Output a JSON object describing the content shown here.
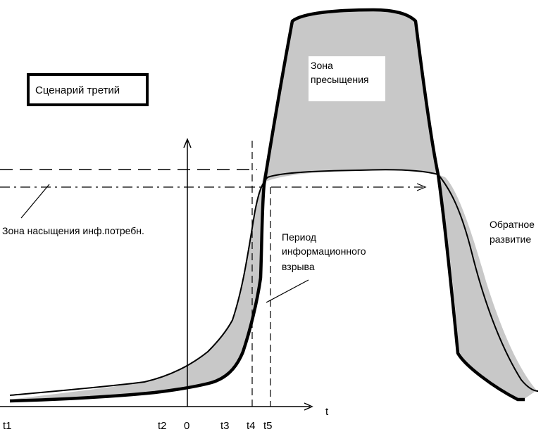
{
  "scenario_label": "Сценарий третий",
  "zones": {
    "supersaturation": [
      "Зона",
      "пресыщения"
    ],
    "saturation": "Зона насыщения  инф.потребн.",
    "explosion": [
      "Период",
      "информационного",
      "взрыва"
    ],
    "reverse": [
      "Обратное",
      "развитие"
    ]
  },
  "axis": {
    "x_label": "t",
    "ticks": [
      "t1",
      "t2",
      "0",
      "t3",
      "t4",
      "t5"
    ]
  },
  "colors": {
    "fill": "#c8c8c8",
    "stroke": "#000000"
  }
}
